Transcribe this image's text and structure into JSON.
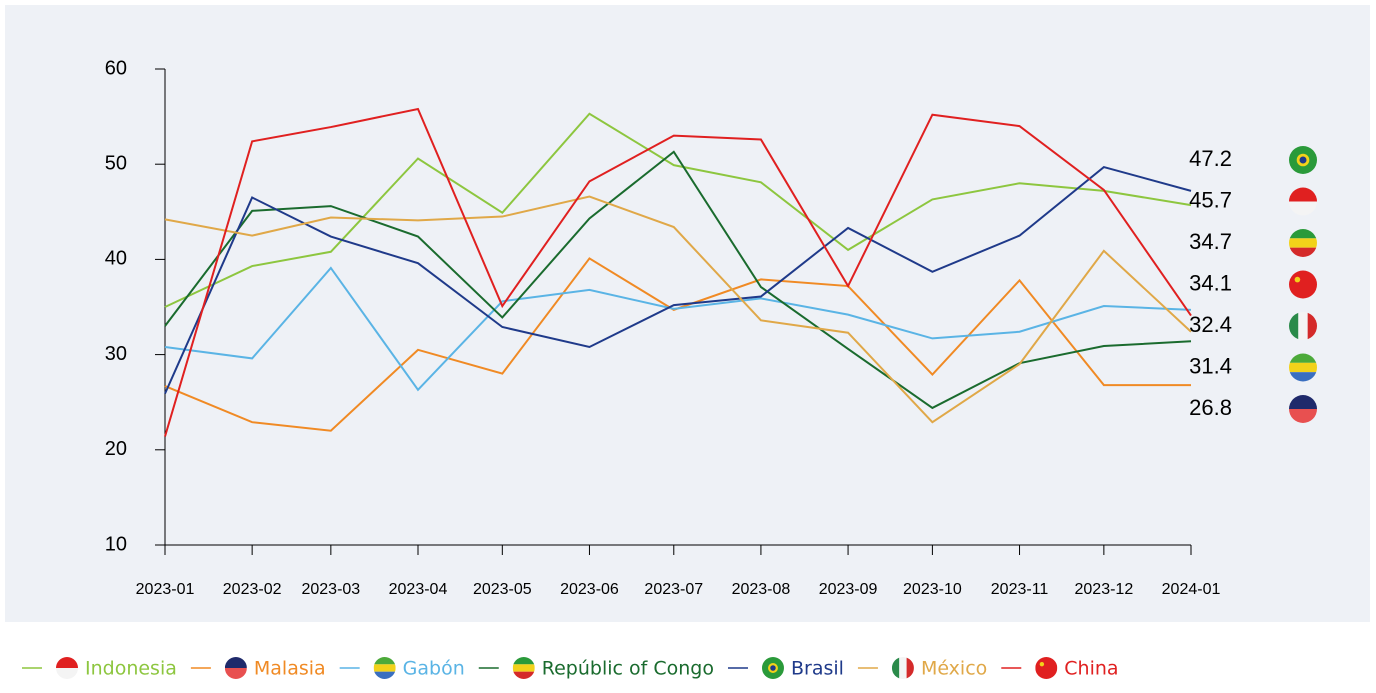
{
  "chart_data": {
    "type": "line",
    "x": [
      "2023-01",
      "2023-02",
      "2023-03",
      "2023-04",
      "2023-05",
      "2023-06",
      "2023-07",
      "2023-08",
      "2023-09",
      "2023-10",
      "2023-11",
      "2023-12",
      "2024-01"
    ],
    "ylim": [
      10,
      60
    ],
    "yticks": [
      10,
      20,
      30,
      40,
      50,
      60
    ],
    "series": [
      {
        "name": "Indonesia",
        "color": "#8dc63f",
        "values": [
          35.0,
          39.3,
          40.8,
          50.6,
          44.9,
          55.3,
          49.9,
          48.1,
          41.0,
          46.3,
          48.0,
          47.2,
          45.7
        ]
      },
      {
        "name": "Malasia",
        "color": "#f08a24",
        "values": [
          26.7,
          22.9,
          22.0,
          30.5,
          28.0,
          40.1,
          34.7,
          37.9,
          37.2,
          27.9,
          37.8,
          26.8,
          26.8
        ]
      },
      {
        "name": "Gabón",
        "color": "#5ab4e5",
        "values": [
          30.8,
          29.6,
          39.1,
          26.3,
          35.6,
          36.8,
          34.8,
          35.9,
          34.2,
          31.7,
          32.4,
          35.1,
          34.7
        ]
      },
      {
        "name": "Repúblic of Congo",
        "color": "#1a6b2e",
        "values": [
          33.0,
          45.1,
          45.6,
          42.4,
          33.9,
          44.3,
          51.3,
          37.1,
          30.6,
          24.4,
          29.1,
          30.9,
          31.4
        ]
      },
      {
        "name": "Brasil",
        "color": "#1f3a8a",
        "values": [
          25.9,
          46.5,
          42.4,
          39.6,
          32.9,
          30.8,
          35.2,
          36.1,
          43.3,
          38.7,
          42.5,
          49.7,
          47.2
        ]
      },
      {
        "name": "México",
        "color": "#e0a848",
        "values": [
          44.2,
          42.5,
          44.4,
          44.1,
          44.5,
          46.6,
          43.4,
          33.6,
          32.3,
          22.9,
          29.0,
          40.9,
          32.4
        ]
      },
      {
        "name": "China",
        "color": "#e02020",
        "values": [
          21.4,
          52.4,
          53.9,
          55.8,
          35.1,
          48.2,
          53.0,
          52.6,
          37.2,
          55.2,
          54.0,
          47.3,
          34.1
        ]
      }
    ],
    "end_labels": [
      47.2,
      45.7,
      34.7,
      34.1,
      32.4,
      31.4,
      26.8
    ]
  }
}
